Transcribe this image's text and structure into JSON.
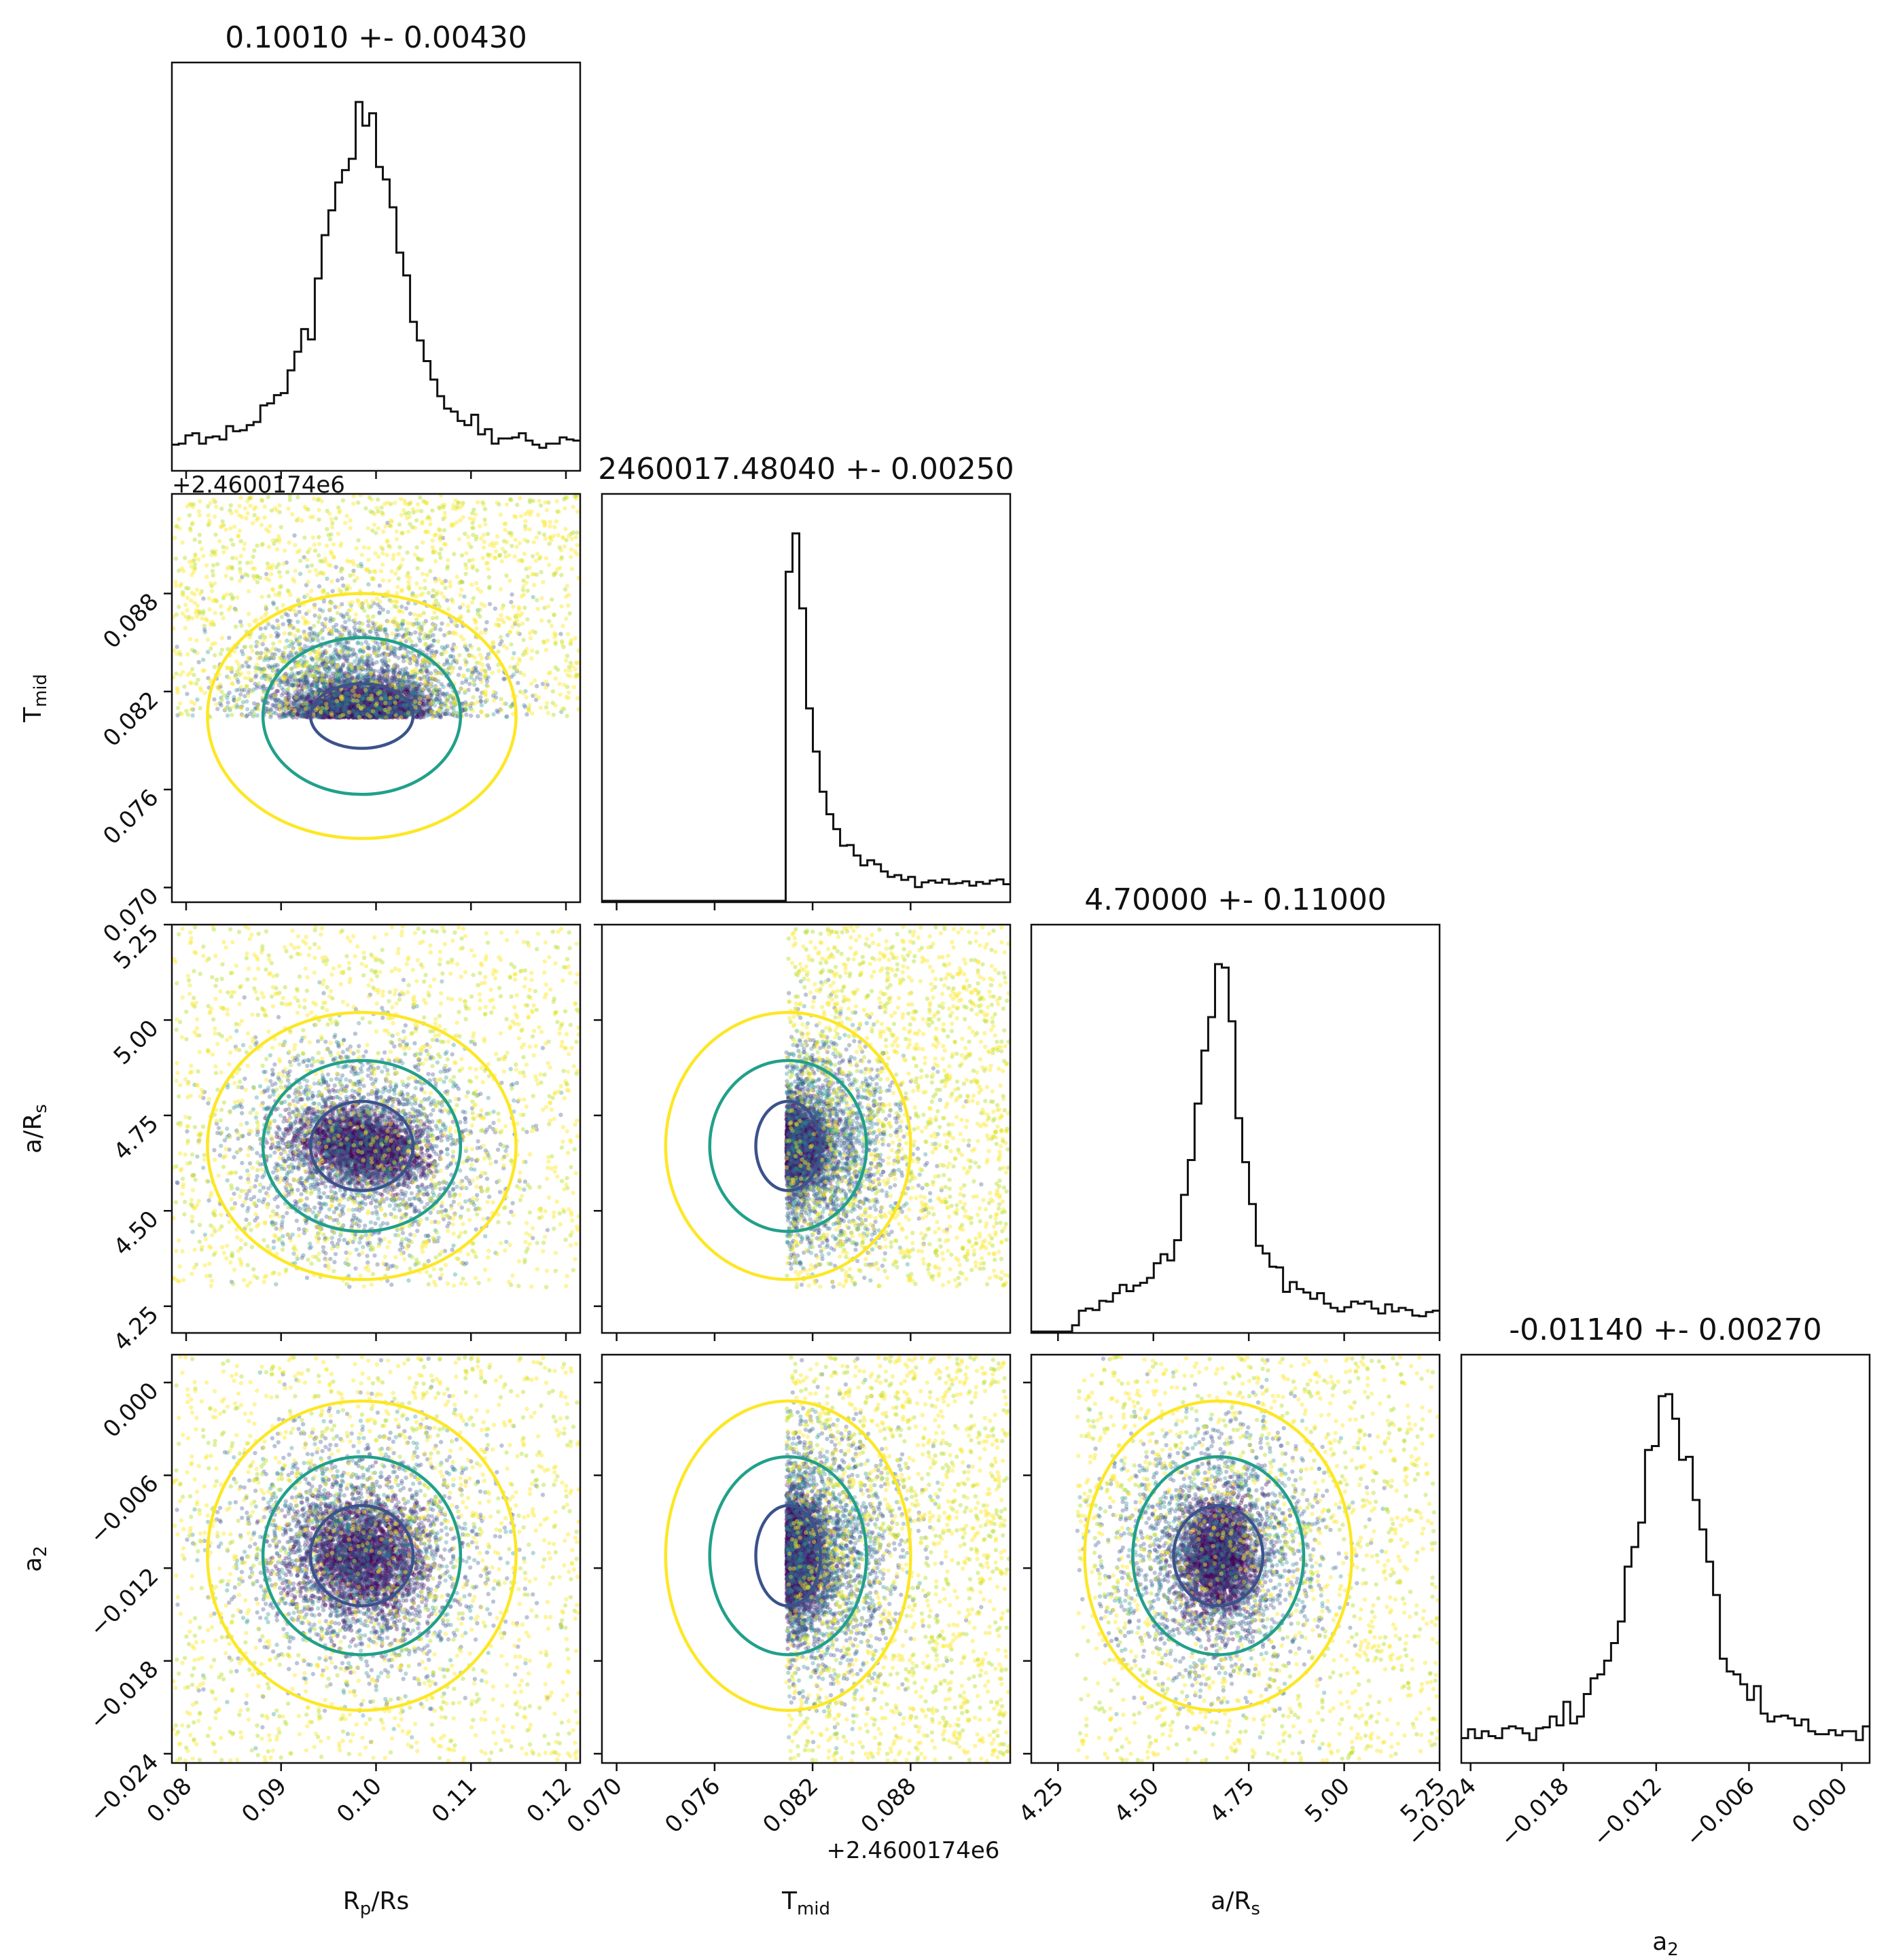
{
  "chart_data": {
    "type": "scatter",
    "plot_kind": "corner plot",
    "parameters": [
      {
        "key": "rp",
        "axis_label": "R_p/R_s",
        "title": "0.10010 +- 0.00430",
        "mean": 0.1001,
        "std": 0.0043,
        "range": [
          0.0785,
          0.1215
        ],
        "ticks": [
          "0.08",
          "0.09",
          "0.10",
          "0.11",
          "0.12"
        ],
        "tick_values": [
          0.08,
          0.09,
          0.1,
          0.11,
          0.12
        ],
        "offset_text": ""
      },
      {
        "key": "tmid",
        "axis_label": "T_mid",
        "title": "2460017.48040 +- 0.00250",
        "mean": 0.0804,
        "std": 0.0025,
        "range": [
          0.0691,
          0.0941
        ],
        "ticks": [
          "0.070",
          "0.076",
          "0.082",
          "0.088"
        ],
        "tick_values": [
          0.07,
          0.076,
          0.082,
          0.088
        ],
        "offset_text": "+2.4600174e6"
      },
      {
        "key": "ars",
        "axis_label": "a/R_s",
        "title": "4.70000 +- 0.11000",
        "mean": 4.7,
        "std": 0.11,
        "range": [
          4.18,
          5.25
        ],
        "ticks": [
          "4.25",
          "4.50",
          "4.75",
          "5.00",
          "5.25"
        ],
        "tick_values": [
          4.25,
          4.5,
          4.75,
          5.0,
          5.25
        ],
        "offset_text": ""
      },
      {
        "key": "a2",
        "axis_label": "a_2",
        "title": "-0.01140 +- 0.00270",
        "mean": -0.0114,
        "std": 0.0027,
        "range": [
          -0.0246,
          0.0018
        ],
        "ticks": [
          "−0.024",
          "−0.018",
          "−0.012",
          "−0.006",
          "0.000"
        ],
        "tick_values": [
          -0.024,
          -0.018,
          -0.012,
          -0.006,
          0.0
        ],
        "offset_text": ""
      }
    ],
    "posterior_centers": {
      "rp": 0.0985,
      "tmid": 0.0805,
      "ars": 4.67,
      "a2": -0.0112
    },
    "contour_levels": [
      "1-sigma (dark blue)",
      "2-sigma (teal)",
      "3-sigma (yellow)"
    ],
    "colors": {
      "hist": "#111111",
      "contour_inner": "#3b528b",
      "contour_mid": "#21a08a",
      "contour_outer": "#fde725",
      "point_dense": "#440154",
      "axis": "#111111"
    },
    "grid": false,
    "legend": "none"
  }
}
